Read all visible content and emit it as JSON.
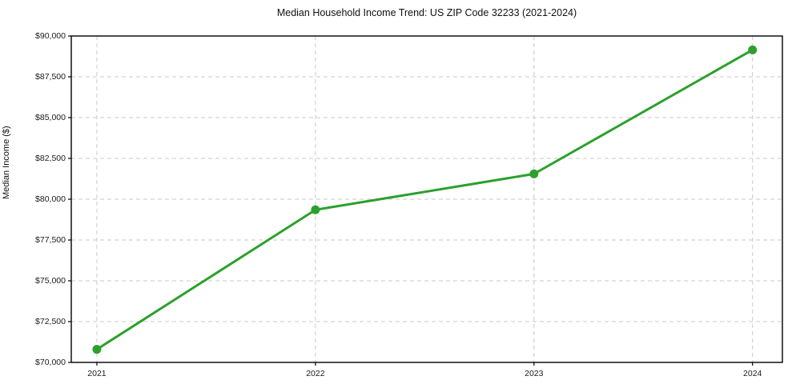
{
  "title": "Median Household Income Trend: US ZIP Code 32233 (2021-2024)",
  "chart_data": {
    "type": "line",
    "title": "Median Household Income Trend: US ZIP Code 32233 (2021-2024)",
    "xlabel": "",
    "ylabel": "Median Income ($)",
    "x": [
      2021,
      2022,
      2023,
      2024
    ],
    "xtick_labels": [
      "2021",
      "2022",
      "2023",
      "2024"
    ],
    "series": [
      {
        "name": "Median Income",
        "values": [
          70800,
          79350,
          81550,
          89150
        ]
      }
    ],
    "ylim": [
      70000,
      90000
    ],
    "ytick_step": 2500,
    "ytick_values": [
      70000,
      72500,
      75000,
      77500,
      80000,
      82500,
      85000,
      87500,
      90000
    ],
    "ytick_labels": [
      "$70,000",
      "$72,500",
      "$75,000",
      "$77,500",
      "$80,000",
      "$82,500",
      "$85,000",
      "$87,500",
      "$90,000"
    ],
    "grid": "dashed",
    "legend": "none",
    "line_color": "#2ca02c",
    "marker": "circle",
    "grid_color": "#c9c9c9",
    "spine_color": "#000000",
    "background_color": "#ffffff"
  }
}
